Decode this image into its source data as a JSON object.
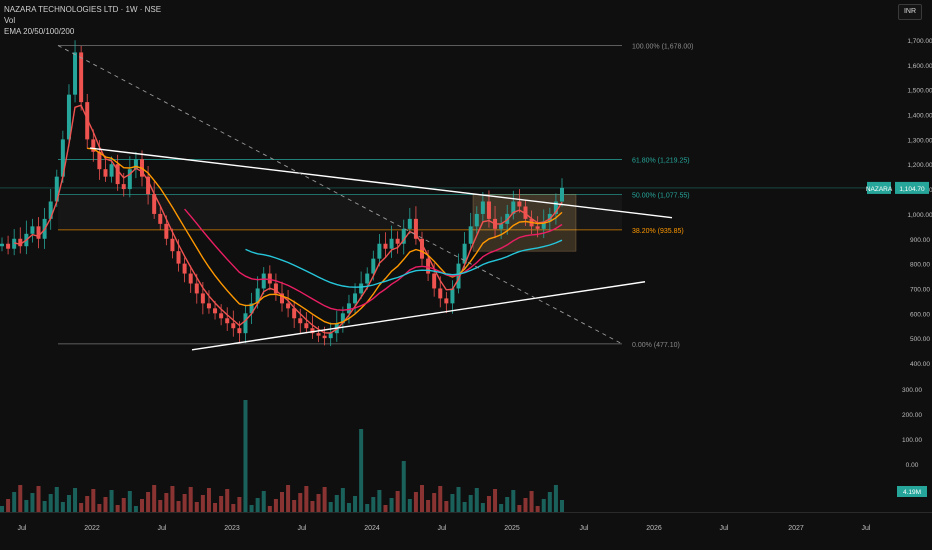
{
  "header": {
    "symbol_line": "NAZARA TECHNOLOGIES LTD · 1W · NSE",
    "vol_label": "Vol",
    "ema_label": "EMA 20/50/100/200",
    "currency": "INR"
  },
  "price_tag": {
    "symbol": "NAZARA",
    "value": "1,104.70"
  },
  "volume_tag": "4.19M",
  "colors": {
    "up": "#26a69a",
    "down": "#ef5350",
    "ema20": "#ef5350",
    "ema50": "#ff9800",
    "ema100": "#e91e63",
    "ema200": "#26c6da",
    "fib": "#26a69a",
    "fib_382": "#ff9800",
    "trend": "#ffffff"
  },
  "chart_data": {
    "type": "candlestick",
    "price_axis_labels": [
      "1,700.00",
      "1,600.00",
      "1,500.00",
      "1,400.00",
      "1,300.00",
      "1,200.00",
      "1,100.00",
      "1,000.00",
      "900.00",
      "800.00",
      "700.00",
      "600.00",
      "500.00",
      "400.00"
    ],
    "volume_axis_labels": [
      "300.00",
      "200.00",
      "100.00",
      "0.00"
    ],
    "x_axis_labels": [
      "Jul",
      "2022",
      "Jul",
      "2023",
      "Jul",
      "2024",
      "Jul",
      "2025",
      "Jul",
      "2026",
      "Jul",
      "2027",
      "Jul"
    ],
    "fib_levels": [
      {
        "label": "100.00% (1,678.00)",
        "price": 1678
      },
      {
        "label": "61.80% (1,219.25)",
        "price": 1219.25
      },
      {
        "label": "50.00% (1,077.55)",
        "price": 1077.55
      },
      {
        "label": "38.20% (935.85)",
        "price": 935.85
      },
      {
        "label": "0.00% (477.10)",
        "price": 477.1
      }
    ],
    "last_price": 1104.7,
    "last_volume": "4.19M",
    "ohlc_weekly_close": [
      [
        0,
        880
      ],
      [
        1,
        860
      ],
      [
        2,
        900
      ],
      [
        3,
        870
      ],
      [
        4,
        920
      ],
      [
        5,
        950
      ],
      [
        6,
        900
      ],
      [
        7,
        980
      ],
      [
        8,
        1050
      ],
      [
        9,
        1150
      ],
      [
        10,
        1300
      ],
      [
        11,
        1480
      ],
      [
        12,
        1650
      ],
      [
        13,
        1450
      ],
      [
        14,
        1300
      ],
      [
        15,
        1250
      ],
      [
        16,
        1180
      ],
      [
        17,
        1150
      ],
      [
        18,
        1200
      ],
      [
        19,
        1120
      ],
      [
        20,
        1100
      ],
      [
        21,
        1180
      ],
      [
        22,
        1220
      ],
      [
        23,
        1150
      ],
      [
        24,
        1080
      ],
      [
        25,
        1000
      ],
      [
        26,
        960
      ],
      [
        27,
        900
      ],
      [
        28,
        850
      ],
      [
        29,
        800
      ],
      [
        30,
        760
      ],
      [
        31,
        720
      ],
      [
        32,
        680
      ],
      [
        33,
        640
      ],
      [
        34,
        620
      ],
      [
        35,
        600
      ],
      [
        36,
        580
      ],
      [
        37,
        560
      ],
      [
        38,
        540
      ],
      [
        39,
        520
      ],
      [
        40,
        600
      ],
      [
        41,
        640
      ],
      [
        42,
        700
      ],
      [
        43,
        760
      ],
      [
        44,
        720
      ],
      [
        45,
        680
      ],
      [
        46,
        640
      ],
      [
        47,
        620
      ],
      [
        48,
        580
      ],
      [
        49,
        560
      ],
      [
        50,
        540
      ],
      [
        51,
        520
      ],
      [
        52,
        510
      ],
      [
        53,
        500
      ],
      [
        54,
        520
      ],
      [
        55,
        560
      ],
      [
        56,
        600
      ],
      [
        57,
        640
      ],
      [
        58,
        680
      ],
      [
        59,
        720
      ],
      [
        60,
        760
      ],
      [
        61,
        820
      ],
      [
        62,
        880
      ],
      [
        63,
        860
      ],
      [
        64,
        900
      ],
      [
        65,
        880
      ],
      [
        66,
        940
      ],
      [
        67,
        980
      ],
      [
        68,
        900
      ],
      [
        69,
        820
      ],
      [
        70,
        760
      ],
      [
        71,
        700
      ],
      [
        72,
        660
      ],
      [
        73,
        640
      ],
      [
        74,
        700
      ],
      [
        75,
        800
      ],
      [
        76,
        880
      ],
      [
        77,
        950
      ],
      [
        78,
        1000
      ],
      [
        79,
        1050
      ],
      [
        80,
        980
      ],
      [
        81,
        940
      ],
      [
        82,
        960
      ],
      [
        83,
        1000
      ],
      [
        84,
        1050
      ],
      [
        85,
        1030
      ],
      [
        86,
        980
      ],
      [
        87,
        950
      ],
      [
        88,
        940
      ],
      [
        89,
        970
      ],
      [
        90,
        1000
      ],
      [
        91,
        1050
      ],
      [
        92,
        1104.7
      ]
    ],
    "grid": false,
    "legend": "top-left"
  }
}
